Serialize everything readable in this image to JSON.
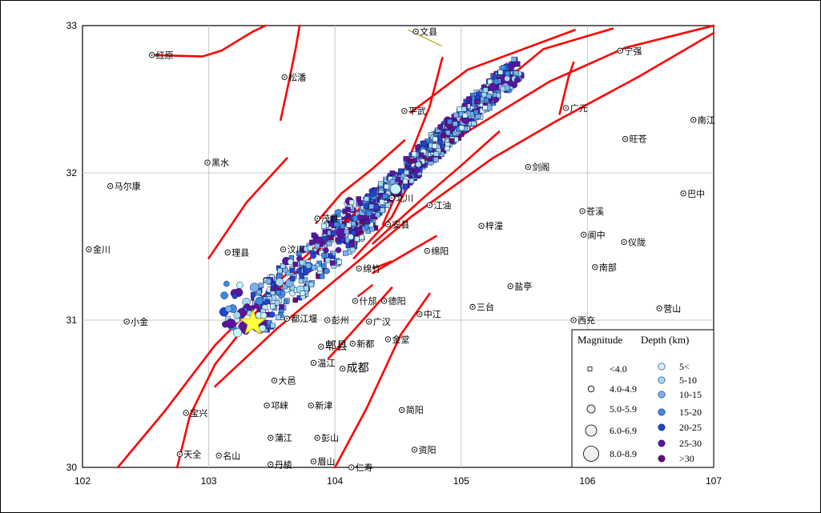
{
  "map": {
    "axes": {
      "lon_ticks": [
        "102",
        "103",
        "104",
        "105",
        "106",
        "107"
      ],
      "lat_ticks": [
        "30",
        "31",
        "32",
        "33"
      ],
      "lon_range": [
        102,
        107
      ],
      "lat_range": [
        30,
        33
      ]
    },
    "cities": [
      {
        "name": "文县",
        "lon": 104.64,
        "lat": 32.96,
        "big": false
      },
      {
        "name": "红原",
        "lon": 102.55,
        "lat": 32.8,
        "big": false
      },
      {
        "name": "宁强",
        "lon": 106.26,
        "lat": 32.83,
        "big": false
      },
      {
        "name": "松潘",
        "lon": 103.6,
        "lat": 32.65,
        "big": false
      },
      {
        "name": "平武",
        "lon": 104.55,
        "lat": 32.42,
        "big": false
      },
      {
        "name": "广元",
        "lon": 105.83,
        "lat": 32.44,
        "big": false
      },
      {
        "name": "南江",
        "lon": 106.84,
        "lat": 32.36,
        "big": false
      },
      {
        "name": "旺苍",
        "lon": 106.3,
        "lat": 32.23,
        "big": false
      },
      {
        "name": "黑水",
        "lon": 102.99,
        "lat": 32.07,
        "big": false
      },
      {
        "name": "剑阁",
        "lon": 105.53,
        "lat": 32.04,
        "big": false
      },
      {
        "name": "马尔康",
        "lon": 102.22,
        "lat": 31.91,
        "big": false
      },
      {
        "name": "巴中",
        "lon": 106.76,
        "lat": 31.86,
        "big": false
      },
      {
        "name": "北川",
        "lon": 104.45,
        "lat": 31.83,
        "big": false
      },
      {
        "name": "江油",
        "lon": 104.75,
        "lat": 31.78,
        "big": false
      },
      {
        "name": "苍溪",
        "lon": 105.96,
        "lat": 31.74,
        "big": false
      },
      {
        "name": "茂县",
        "lon": 103.86,
        "lat": 31.69,
        "big": false
      },
      {
        "name": "安县",
        "lon": 104.42,
        "lat": 31.65,
        "big": false
      },
      {
        "name": "梓潼",
        "lon": 105.16,
        "lat": 31.64,
        "big": false
      },
      {
        "name": "阆中",
        "lon": 105.97,
        "lat": 31.58,
        "big": false
      },
      {
        "name": "仪陇",
        "lon": 106.29,
        "lat": 31.53,
        "big": false
      },
      {
        "name": "金川",
        "lon": 102.05,
        "lat": 31.48,
        "big": false
      },
      {
        "name": "汶川",
        "lon": 103.59,
        "lat": 31.48,
        "big": false
      },
      {
        "name": "理县",
        "lon": 103.15,
        "lat": 31.46,
        "big": false
      },
      {
        "name": "绵阳",
        "lon": 104.73,
        "lat": 31.47,
        "big": false
      },
      {
        "name": "南部",
        "lon": 106.06,
        "lat": 31.36,
        "big": false
      },
      {
        "name": "绵竹",
        "lon": 104.19,
        "lat": 31.35,
        "big": false
      },
      {
        "name": "盐亭",
        "lon": 105.39,
        "lat": 31.23,
        "big": false
      },
      {
        "name": "什邡",
        "lon": 104.16,
        "lat": 31.13,
        "big": false
      },
      {
        "name": "德阳",
        "lon": 104.39,
        "lat": 31.13,
        "big": false
      },
      {
        "name": "三台",
        "lon": 105.09,
        "lat": 31.09,
        "big": false
      },
      {
        "name": "中江",
        "lon": 104.67,
        "lat": 31.04,
        "big": false
      },
      {
        "name": "营山",
        "lon": 106.57,
        "lat": 31.08,
        "big": false
      },
      {
        "name": "西充",
        "lon": 105.89,
        "lat": 31.0,
        "big": false
      },
      {
        "name": "小金",
        "lon": 102.35,
        "lat": 30.99,
        "big": false
      },
      {
        "name": "都江堰",
        "lon": 103.62,
        "lat": 31.01,
        "big": false
      },
      {
        "name": "彭州",
        "lon": 103.94,
        "lat": 31.0,
        "big": false
      },
      {
        "name": "广汉",
        "lon": 104.27,
        "lat": 30.99,
        "big": false
      },
      {
        "name": "郫县",
        "lon": 103.89,
        "lat": 30.82,
        "big": true
      },
      {
        "name": "新都",
        "lon": 104.14,
        "lat": 30.84,
        "big": false
      },
      {
        "name": "金堂",
        "lon": 104.42,
        "lat": 30.87,
        "big": false
      },
      {
        "name": "温江",
        "lon": 103.83,
        "lat": 30.71,
        "big": false
      },
      {
        "name": "成都",
        "lon": 104.06,
        "lat": 30.67,
        "big": true
      },
      {
        "name": "大邑",
        "lon": 103.52,
        "lat": 30.59,
        "big": false
      },
      {
        "name": "邛崃",
        "lon": 103.46,
        "lat": 30.42,
        "big": false
      },
      {
        "name": "新津",
        "lon": 103.81,
        "lat": 30.42,
        "big": false
      },
      {
        "name": "宝兴",
        "lon": 102.82,
        "lat": 30.37,
        "big": false
      },
      {
        "name": "简阳",
        "lon": 104.53,
        "lat": 30.39,
        "big": false
      },
      {
        "name": "蒲江",
        "lon": 103.49,
        "lat": 30.2,
        "big": false
      },
      {
        "name": "彭山",
        "lon": 103.86,
        "lat": 30.2,
        "big": false
      },
      {
        "name": "天全",
        "lon": 102.77,
        "lat": 30.09,
        "big": false
      },
      {
        "name": "名山",
        "lon": 103.08,
        "lat": 30.08,
        "big": false
      },
      {
        "name": "资阳",
        "lon": 104.63,
        "lat": 30.12,
        "big": false
      },
      {
        "name": "丹棱",
        "lon": 103.49,
        "lat": 30.02,
        "big": false
      },
      {
        "name": "眉山",
        "lon": 103.83,
        "lat": 30.04,
        "big": false
      },
      {
        "name": "仁寿",
        "lon": 104.13,
        "lat": 30.0,
        "big": false
      }
    ],
    "epicenter": {
      "lon": 103.35,
      "lat": 30.98,
      "color": "#ffff44"
    },
    "colors": {
      "fault": "#ff0000",
      "depth": [
        "#c8f4fa",
        "#a0dcf0",
        "#78b4ec",
        "#3c8ce0",
        "#2046d0",
        "#5c14a0",
        "#6e0a6e"
      ]
    }
  },
  "legend": {
    "magnitude_title": "Magnitude",
    "depth_title": "Depth (km)",
    "magnitudes": [
      "<4.0",
      "4.0-4.9",
      "5.0-5.9",
      "6.0-6.9",
      "8.0-8.9"
    ],
    "depths": [
      "5<",
      "5-10",
      "10-15",
      "15-20",
      "20-25",
      "25-30",
      ">30"
    ]
  }
}
